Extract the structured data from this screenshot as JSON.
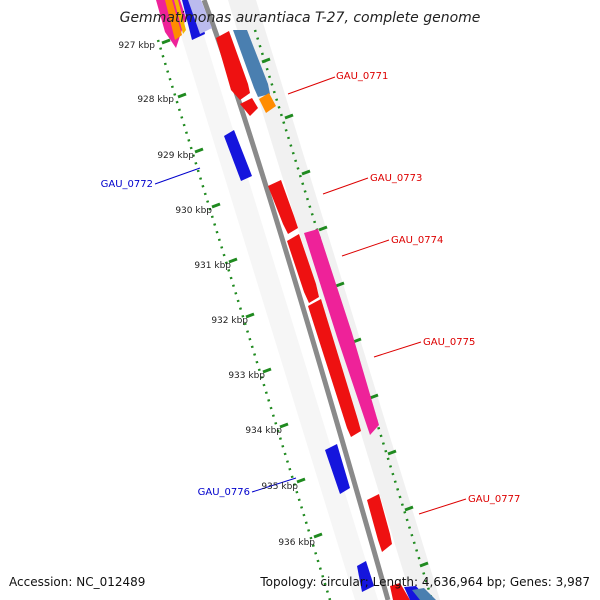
{
  "title": "Gemmatimonas aurantiaca T-27, complete genome",
  "accession": "Accession: NC_012489",
  "summary": "Topology: circular; Length: 4,636,964 bp; Genes: 3,987",
  "colors": {
    "backbone": "#8a8a8a",
    "ruler": "#1f8a1f",
    "forward_label": "#dd0000",
    "reverse_label": "#0000cc",
    "cds_red": "#ee1111",
    "cds_blue": "#1515dd",
    "cds_pink": "#ee2299",
    "cds_steel": "#4a7fb0",
    "cds_orange": "#ff8c00"
  },
  "ticks": [
    "927 kbp",
    "928 kbp",
    "929 kbp",
    "930 kbp",
    "931 kbp",
    "932 kbp",
    "933 kbp",
    "934 kbp",
    "935 kbp",
    "936 kbp"
  ],
  "gene_labels": {
    "gau_0771": "GAU_0771",
    "gau_0772": "GAU_0772",
    "gau_0773": "GAU_0773",
    "gau_0774": "GAU_0774",
    "gau_0775": "GAU_0775",
    "gau_0776": "GAU_0776",
    "gau_0777": "GAU_0777"
  }
}
